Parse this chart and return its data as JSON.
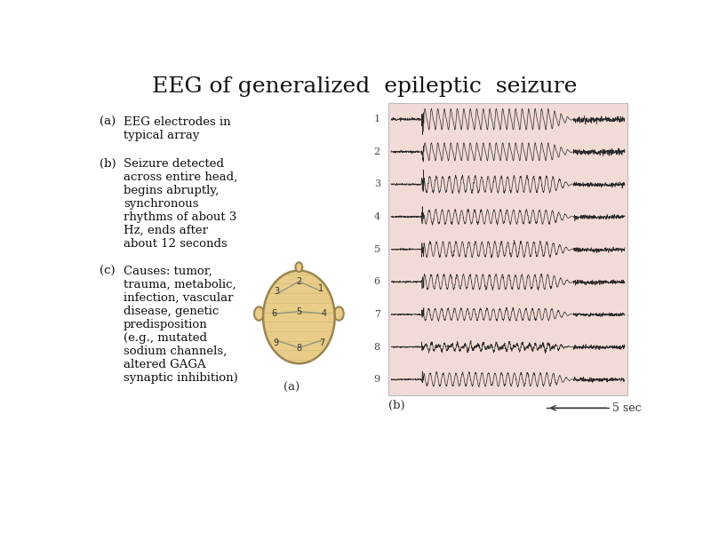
{
  "title": "EEG of generalized  epileptic  seizure",
  "title_fontsize": 18,
  "background_color": "#ffffff",
  "eeg_bg_color": "#f2dbd6",
  "text_a_label": "(a)",
  "text_a_content": "EEG electrodes in\ntypical array",
  "text_b_label": "(b)",
  "text_b_content": "Seizure detected\nacross entire head,\nbegins abruptly,\nsynchronous\nrhythms of about 3\nHz, ends after\nabout 12 seconds",
  "text_c_label": "(c)",
  "text_c_content": "Causes: tumor,\ntrauma, metabolic,\ninfection, vascular\ndisease, genetic\npredisposition\n(e.g., mutated\nsodium channels,\naltered GAGA\nsynaptic inhibition)",
  "label_a": "(a)",
  "label_b": "(b)",
  "n_channels": 9,
  "eeg_line_color": "#1a1a1a",
  "head_skin_color": "#e8cc88",
  "head_skin_color2": "#d4b870",
  "head_outline_color": "#9a8450",
  "head_line_color": "#8a9080",
  "scale_bar_label": "5 sec"
}
